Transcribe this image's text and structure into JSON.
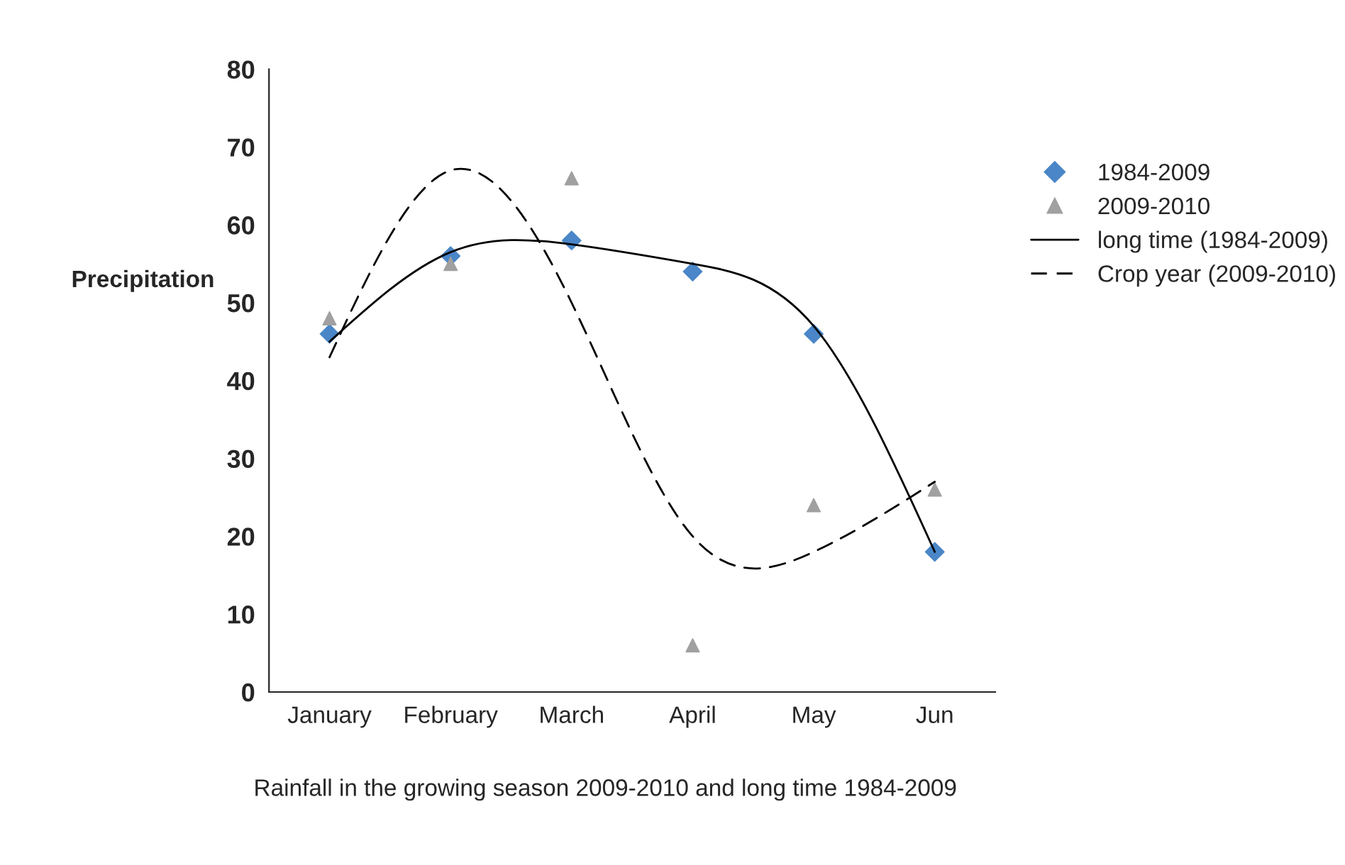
{
  "chart_data": {
    "type": "scatter",
    "ylabel": "Precipitation",
    "categories": [
      "January",
      "February",
      "March",
      "April",
      "May",
      "Jun"
    ],
    "series": [
      {
        "name": "1984-2009",
        "color": "#4a86c8",
        "marker": "diamond",
        "values": [
          46,
          56,
          58,
          54,
          46,
          18
        ]
      },
      {
        "name": "2009-2010",
        "color": "#a0a0a0",
        "marker": "triangle",
        "values": [
          48,
          55,
          66,
          6,
          24,
          26
        ]
      },
      {
        "name": "long time (1984-2009)",
        "type": "line",
        "color": "#000000",
        "line_style": "solid",
        "values": [
          45,
          56.5,
          57.5,
          55,
          47,
          18
        ]
      },
      {
        "name": "Crop year (2009-2010)",
        "type": "line",
        "color": "#000000",
        "line_style": "dashed",
        "values": [
          43,
          67,
          50,
          20,
          18,
          27
        ]
      }
    ],
    "ylim": [
      0,
      80
    ],
    "yticks": [
      0,
      10,
      20,
      30,
      40,
      50,
      60,
      70,
      80
    ],
    "grid": false,
    "legend": "right",
    "annotations": [
      "Rainfall in the growing season 2009-2010 and long time 1984-2009"
    ]
  }
}
